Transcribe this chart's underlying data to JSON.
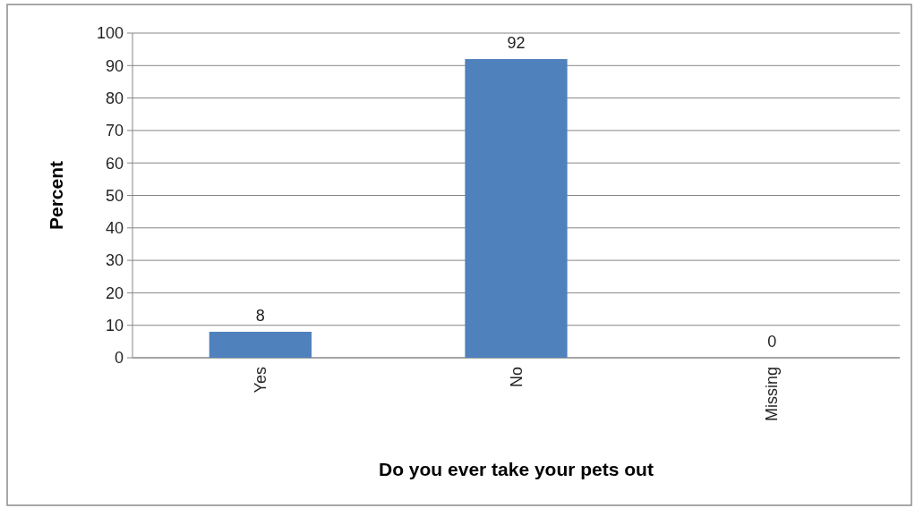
{
  "chart_data": {
    "type": "bar",
    "xlabel": "Do you ever take your pets out",
    "ylabel": "Percent",
    "categories": [
      "Yes",
      "No",
      "Missing"
    ],
    "values": [
      8,
      92,
      0
    ],
    "color": "#4f81bd",
    "ylim": [
      0,
      100
    ],
    "yticks": [
      0,
      10,
      20,
      30,
      40,
      50,
      60,
      70,
      80,
      90,
      100
    ],
    "grid": "y",
    "data_labels": true
  }
}
